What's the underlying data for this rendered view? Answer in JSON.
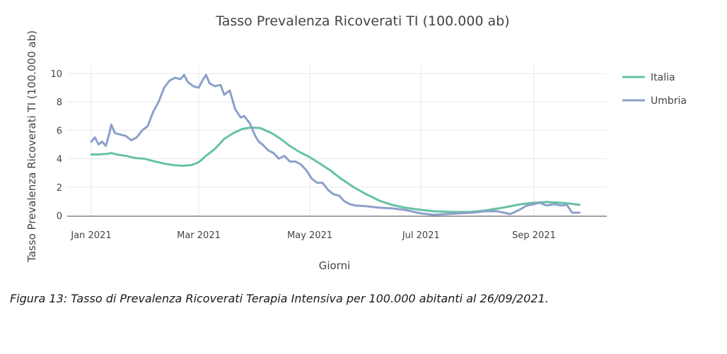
{
  "chart_data": {
    "type": "line",
    "title": "Tasso Prevalenza Ricoverati TI (100.000 ab)",
    "xlabel": "Giorni",
    "ylabel": "Tasso Prevalenza Ricoverati TI (100.000 ab)",
    "x_range": [
      "2021-01-01",
      "2021-09-26"
    ],
    "ylim": [
      0,
      10
    ],
    "y_ticks": [
      0,
      2,
      4,
      6,
      8,
      10
    ],
    "x_ticks": [
      {
        "date": "2021-01-01",
        "label": "Jan 2021"
      },
      {
        "date": "2021-03-01",
        "label": "Mar 2021"
      },
      {
        "date": "2021-05-01",
        "label": "May 2021"
      },
      {
        "date": "2021-07-01",
        "label": "Jul 2021"
      },
      {
        "date": "2021-09-01",
        "label": "Sep 2021"
      }
    ],
    "grid": true,
    "legend_position": "right",
    "series": [
      {
        "name": "Italia",
        "color": "#66c2a5",
        "points": [
          [
            "2021-01-01",
            4.3
          ],
          [
            "2021-01-05",
            4.3
          ],
          [
            "2021-01-10",
            4.35
          ],
          [
            "2021-01-12",
            4.4
          ],
          [
            "2021-01-15",
            4.3
          ],
          [
            "2021-01-20",
            4.2
          ],
          [
            "2021-01-25",
            4.05
          ],
          [
            "2021-01-30",
            4.0
          ],
          [
            "2021-02-05",
            3.8
          ],
          [
            "2021-02-10",
            3.65
          ],
          [
            "2021-02-15",
            3.55
          ],
          [
            "2021-02-20",
            3.5
          ],
          [
            "2021-02-25",
            3.55
          ],
          [
            "2021-03-01",
            3.75
          ],
          [
            "2021-03-05",
            4.2
          ],
          [
            "2021-03-10",
            4.7
          ],
          [
            "2021-03-15",
            5.4
          ],
          [
            "2021-03-20",
            5.8
          ],
          [
            "2021-03-25",
            6.1
          ],
          [
            "2021-03-30",
            6.2
          ],
          [
            "2021-04-04",
            6.15
          ],
          [
            "2021-04-10",
            5.8
          ],
          [
            "2021-04-15",
            5.4
          ],
          [
            "2021-04-20",
            4.9
          ],
          [
            "2021-04-25",
            4.5
          ],
          [
            "2021-05-01",
            4.1
          ],
          [
            "2021-05-06",
            3.7
          ],
          [
            "2021-05-12",
            3.2
          ],
          [
            "2021-05-18",
            2.6
          ],
          [
            "2021-05-25",
            2.0
          ],
          [
            "2021-06-01",
            1.5
          ],
          [
            "2021-06-08",
            1.05
          ],
          [
            "2021-06-15",
            0.75
          ],
          [
            "2021-06-22",
            0.55
          ],
          [
            "2021-07-01",
            0.4
          ],
          [
            "2021-07-08",
            0.3
          ],
          [
            "2021-07-18",
            0.25
          ],
          [
            "2021-07-28",
            0.25
          ],
          [
            "2021-08-05",
            0.35
          ],
          [
            "2021-08-15",
            0.55
          ],
          [
            "2021-08-25",
            0.8
          ],
          [
            "2021-09-01",
            0.9
          ],
          [
            "2021-09-08",
            0.95
          ],
          [
            "2021-09-15",
            0.9
          ],
          [
            "2021-09-20",
            0.85
          ],
          [
            "2021-09-26",
            0.75
          ]
        ]
      },
      {
        "name": "Umbria",
        "color": "#8da0cb",
        "points": [
          [
            "2021-01-01",
            5.2
          ],
          [
            "2021-01-03",
            5.5
          ],
          [
            "2021-01-05",
            5.0
          ],
          [
            "2021-01-07",
            5.2
          ],
          [
            "2021-01-09",
            4.9
          ],
          [
            "2021-01-11",
            5.8
          ],
          [
            "2021-01-12",
            6.4
          ],
          [
            "2021-01-14",
            5.8
          ],
          [
            "2021-01-17",
            5.7
          ],
          [
            "2021-01-20",
            5.6
          ],
          [
            "2021-01-23",
            5.3
          ],
          [
            "2021-01-26",
            5.5
          ],
          [
            "2021-01-29",
            6.0
          ],
          [
            "2021-02-01",
            6.3
          ],
          [
            "2021-02-04",
            7.3
          ],
          [
            "2021-02-07",
            8.0
          ],
          [
            "2021-02-10",
            9.0
          ],
          [
            "2021-02-13",
            9.5
          ],
          [
            "2021-02-16",
            9.7
          ],
          [
            "2021-02-19",
            9.6
          ],
          [
            "2021-02-21",
            9.9
          ],
          [
            "2021-02-23",
            9.4
          ],
          [
            "2021-02-26",
            9.1
          ],
          [
            "2021-03-01",
            9.0
          ],
          [
            "2021-03-03",
            9.5
          ],
          [
            "2021-03-05",
            9.9
          ],
          [
            "2021-03-07",
            9.3
          ],
          [
            "2021-03-10",
            9.1
          ],
          [
            "2021-03-13",
            9.2
          ],
          [
            "2021-03-15",
            8.5
          ],
          [
            "2021-03-18",
            8.8
          ],
          [
            "2021-03-21",
            7.5
          ],
          [
            "2021-03-24",
            6.9
          ],
          [
            "2021-03-26",
            7.0
          ],
          [
            "2021-03-29",
            6.5
          ],
          [
            "2021-04-01",
            5.6
          ],
          [
            "2021-04-03",
            5.2
          ],
          [
            "2021-04-05",
            5.0
          ],
          [
            "2021-04-08",
            4.6
          ],
          [
            "2021-04-11",
            4.4
          ],
          [
            "2021-04-14",
            4.0
          ],
          [
            "2021-04-17",
            4.2
          ],
          [
            "2021-04-20",
            3.8
          ],
          [
            "2021-04-23",
            3.8
          ],
          [
            "2021-04-26",
            3.6
          ],
          [
            "2021-04-29",
            3.2
          ],
          [
            "2021-05-02",
            2.6
          ],
          [
            "2021-05-05",
            2.3
          ],
          [
            "2021-05-08",
            2.3
          ],
          [
            "2021-05-11",
            1.8
          ],
          [
            "2021-05-14",
            1.5
          ],
          [
            "2021-05-17",
            1.4
          ],
          [
            "2021-05-20",
            1.0
          ],
          [
            "2021-05-23",
            0.8
          ],
          [
            "2021-05-26",
            0.7
          ],
          [
            "2021-06-01",
            0.65
          ],
          [
            "2021-06-08",
            0.55
          ],
          [
            "2021-06-15",
            0.5
          ],
          [
            "2021-06-22",
            0.4
          ],
          [
            "2021-07-01",
            0.15
          ],
          [
            "2021-07-08",
            0.05
          ],
          [
            "2021-07-15",
            0.1
          ],
          [
            "2021-07-22",
            0.15
          ],
          [
            "2021-07-29",
            0.2
          ],
          [
            "2021-08-05",
            0.3
          ],
          [
            "2021-08-12",
            0.3
          ],
          [
            "2021-08-19",
            0.1
          ],
          [
            "2021-08-24",
            0.4
          ],
          [
            "2021-08-28",
            0.7
          ],
          [
            "2021-09-01",
            0.8
          ],
          [
            "2021-09-04",
            0.9
          ],
          [
            "2021-09-08",
            0.7
          ],
          [
            "2021-09-12",
            0.8
          ],
          [
            "2021-09-16",
            0.7
          ],
          [
            "2021-09-19",
            0.75
          ],
          [
            "2021-09-22",
            0.2
          ],
          [
            "2021-09-26",
            0.2
          ]
        ]
      }
    ]
  },
  "caption": "Figura 13: Tasso di Prevalenza Ricoverati Terapia Intensiva per 100.000 abitanti al 26/09/2021."
}
